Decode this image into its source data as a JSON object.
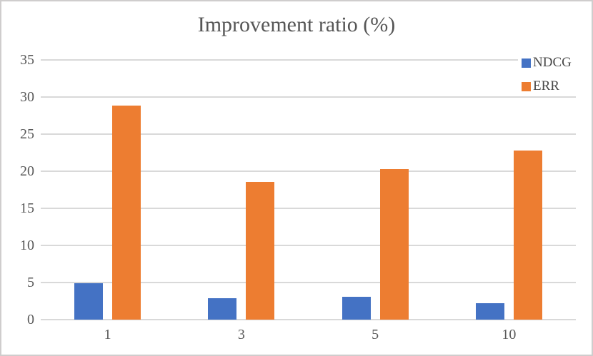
{
  "chart_data": {
    "type": "bar",
    "title": "Improvement ratio (%)",
    "categories": [
      "1",
      "3",
      "5",
      "10"
    ],
    "series": [
      {
        "name": "NDCG",
        "color": "#4472C4",
        "values": [
          4.9,
          2.9,
          3.1,
          2.2
        ]
      },
      {
        "name": "ERR",
        "color": "#ED7D31",
        "values": [
          28.8,
          18.6,
          20.3,
          22.8
        ]
      }
    ],
    "ylim": [
      0,
      35
    ],
    "yticks": [
      0,
      5,
      10,
      15,
      20,
      25,
      30,
      35
    ],
    "xlabel": "",
    "ylabel": "",
    "grid": true,
    "legend_position": "top-right"
  },
  "style": {
    "gridline_color": "#d9d9d9",
    "text_color": "#595959",
    "frame_border_color": "#cfcdcd",
    "background_color": "#ffffff"
  }
}
